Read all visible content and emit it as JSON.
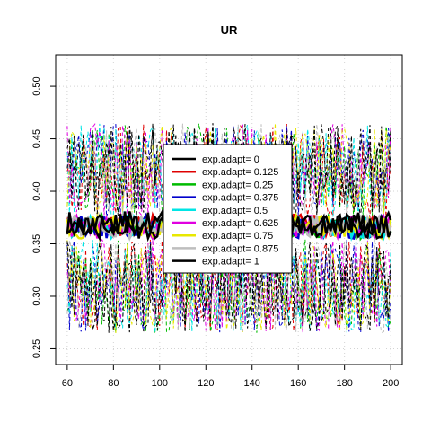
{
  "chart_data": {
    "type": "line",
    "title": "UR",
    "xlabel": "",
    "ylabel": "",
    "xlim": [
      55,
      205
    ],
    "ylim": [
      0.235,
      0.53
    ],
    "xticks": [
      60,
      80,
      100,
      120,
      140,
      160,
      180,
      200
    ],
    "yticks": [
      0.25,
      0.3,
      0.35,
      0.4,
      0.45,
      0.5
    ],
    "ytick_labels": [
      "0.25",
      "0.30",
      "0.35",
      "0.40",
      "0.45",
      "0.50"
    ],
    "x": {
      "start": 60,
      "end": 200,
      "step": 1
    },
    "grid": true,
    "legend_position": "center",
    "series": [
      {
        "name": "exp.adapt= 0",
        "color": "#000000",
        "mean": 0.37
      },
      {
        "name": "exp.adapt= 0.125",
        "color": "#df0000",
        "mean": 0.367
      },
      {
        "name": "exp.adapt= 0.25",
        "color": "#00bb00",
        "mean": 0.366
      },
      {
        "name": "exp.adapt= 0.375",
        "color": "#0000cc",
        "mean": 0.366
      },
      {
        "name": "exp.adapt= 0.5",
        "color": "#00e5e5",
        "mean": 0.366
      },
      {
        "name": "exp.adapt= 0.625",
        "color": "#e000e0",
        "mean": 0.366
      },
      {
        "name": "exp.adapt= 0.75",
        "color": "#e8e800",
        "mean": 0.366
      },
      {
        "name": "exp.adapt= 0.875",
        "color": "#bebebe",
        "mean": 0.366
      },
      {
        "name": "exp.adapt= 1",
        "color": "#000000",
        "mean": 0.366
      }
    ],
    "bands": {
      "upper": 0.42,
      "lower": 0.31
    }
  }
}
